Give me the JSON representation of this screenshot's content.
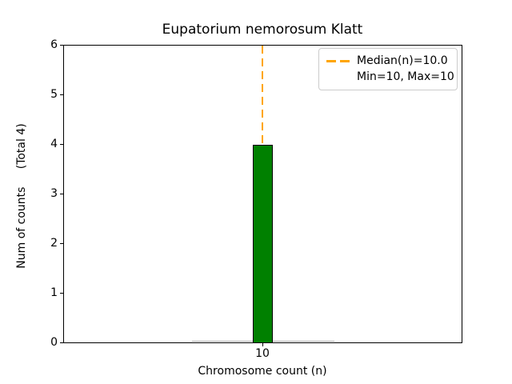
{
  "chart_data": {
    "type": "bar",
    "title": "Eupatorium nemorosum Klatt",
    "xlabel": "Chromosome count (n)",
    "ylabel": "Num of counts     (Total 4)",
    "categories": [
      10
    ],
    "values": [
      4
    ],
    "total_counts": 4,
    "median_n": 10.0,
    "min_n": 10,
    "max_n": 10,
    "ylim": [
      0,
      6
    ],
    "yticks": [
      0,
      1,
      2,
      3,
      4,
      5,
      6
    ],
    "xticks": [
      "10"
    ],
    "grid": false,
    "legend": {
      "position": "upper right",
      "entries": [
        {
          "marker": "orange-dashed-line",
          "label": "Median(n)=10.0"
        },
        {
          "marker": "none",
          "label": "Min=10, Max=10"
        }
      ]
    },
    "colors": {
      "bar_fill": "#008000",
      "bar_edge": "#000000",
      "median_line": "#FFA500",
      "legend_border": "#cccccc",
      "background": "#ffffff",
      "text": "#000000"
    }
  }
}
